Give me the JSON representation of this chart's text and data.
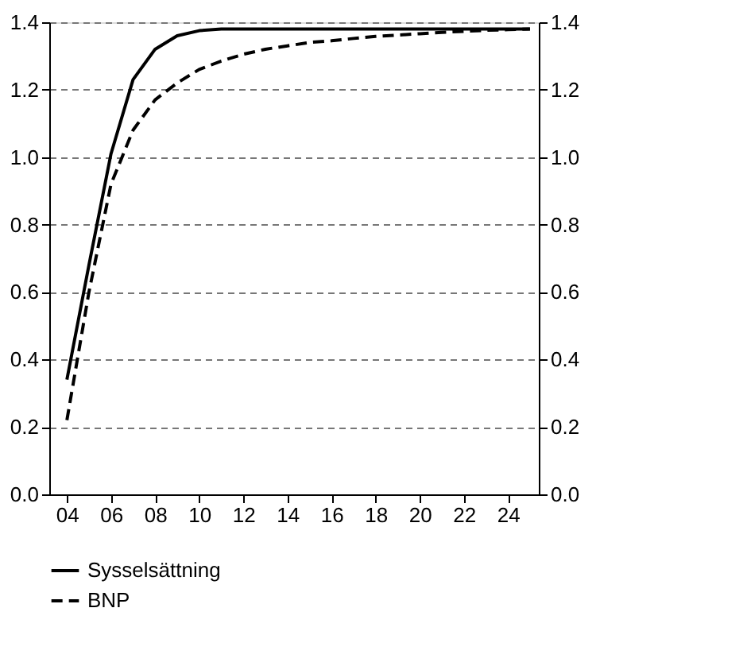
{
  "chart_data": {
    "type": "line",
    "x": [
      4,
      5,
      6,
      7,
      8,
      9,
      10,
      11,
      12,
      13,
      14,
      15,
      16,
      17,
      18,
      19,
      20,
      21,
      22,
      23,
      24,
      25
    ],
    "xlim": [
      3.2,
      25.4
    ],
    "xticks": [
      {
        "value": 4,
        "label": "04"
      },
      {
        "value": 6,
        "label": "06"
      },
      {
        "value": 8,
        "label": "08"
      },
      {
        "value": 10,
        "label": "10"
      },
      {
        "value": 12,
        "label": "12"
      },
      {
        "value": 14,
        "label": "14"
      },
      {
        "value": 16,
        "label": "16"
      },
      {
        "value": 18,
        "label": "18"
      },
      {
        "value": 20,
        "label": "20"
      },
      {
        "value": 22,
        "label": "22"
      },
      {
        "value": 24,
        "label": "24"
      }
    ],
    "ylim": [
      0,
      1.4
    ],
    "yticks": [
      {
        "value": 0,
        "label": "0.0"
      },
      0.2,
      0.4,
      0.6,
      0.8,
      {
        "value": 1,
        "label": "1.0"
      },
      1.2,
      1.4
    ],
    "y2lim": [
      0,
      1.4
    ],
    "y2ticks": [
      {
        "value": 0,
        "label": "0.0"
      },
      0.2,
      0.4,
      0.6,
      0.8,
      {
        "value": 1,
        "label": "1.0"
      },
      1.2,
      1.4
    ],
    "grid": "y",
    "legend": "bottom",
    "series": [
      {
        "name": "Sysselsättning",
        "color": "#000000",
        "line_style": "solid",
        "values": [
          0.34,
          0.68,
          1.01,
          1.23,
          1.32,
          1.36,
          1.375,
          1.38,
          1.38,
          1.38,
          1.38,
          1.38,
          1.38,
          1.38,
          1.38,
          1.38,
          1.38,
          1.38,
          1.38,
          1.38,
          1.38,
          1.38
        ]
      },
      {
        "name": "BNP",
        "color": "#000000",
        "line_style": "dashed",
        "values": [
          0.22,
          0.6,
          0.92,
          1.08,
          1.17,
          1.22,
          1.26,
          1.285,
          1.305,
          1.32,
          1.33,
          1.34,
          1.345,
          1.352,
          1.358,
          1.362,
          1.366,
          1.37,
          1.373,
          1.376,
          1.378,
          1.38
        ]
      }
    ]
  }
}
